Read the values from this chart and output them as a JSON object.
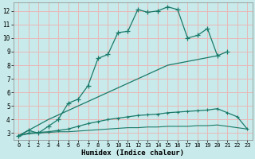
{
  "xlabel": "Humidex (Indice chaleur)",
  "bg_color": "#c8eaea",
  "grid_color": "#e8b8b8",
  "line_color": "#1a7a6a",
  "xlim": [
    -0.5,
    23.5
  ],
  "ylim": [
    2.5,
    12.6
  ],
  "xticks": [
    0,
    1,
    2,
    3,
    4,
    5,
    6,
    7,
    8,
    9,
    10,
    11,
    12,
    13,
    14,
    15,
    16,
    17,
    18,
    19,
    20,
    21,
    22,
    23
  ],
  "yticks": [
    3,
    4,
    5,
    6,
    7,
    8,
    9,
    10,
    11,
    12
  ],
  "line1_x": [
    0,
    1,
    2,
    3,
    4,
    5,
    6,
    7,
    8,
    9,
    10,
    11,
    12,
    13,
    14,
    15,
    16,
    17,
    18,
    19,
    20,
    21
  ],
  "line1_y": [
    2.8,
    3.2,
    3.0,
    3.5,
    4.0,
    5.2,
    5.5,
    6.5,
    8.5,
    8.8,
    10.4,
    10.5,
    12.1,
    11.9,
    12.0,
    12.3,
    12.1,
    10.0,
    10.2,
    10.7,
    8.7,
    9.0
  ],
  "line2_x": [
    0,
    3,
    15,
    20
  ],
  "line2_y": [
    2.8,
    4.0,
    8.0,
    8.7
  ],
  "line3_x": [
    0,
    1,
    2,
    3,
    4,
    5,
    6,
    7,
    8,
    9,
    10,
    11,
    12,
    13,
    14,
    15,
    16,
    17,
    18,
    19,
    20,
    21,
    22,
    23
  ],
  "line3_y": [
    2.8,
    3.0,
    3.05,
    3.1,
    3.2,
    3.3,
    3.5,
    3.7,
    3.85,
    4.0,
    4.1,
    4.2,
    4.3,
    4.35,
    4.4,
    4.5,
    4.55,
    4.6,
    4.65,
    4.7,
    4.8,
    4.5,
    4.2,
    3.3
  ],
  "line4_x": [
    0,
    1,
    2,
    3,
    4,
    5,
    6,
    7,
    8,
    9,
    10,
    11,
    12,
    13,
    14,
    15,
    16,
    17,
    18,
    19,
    20,
    21,
    22,
    23
  ],
  "line4_y": [
    2.8,
    2.95,
    3.0,
    3.05,
    3.1,
    3.1,
    3.15,
    3.2,
    3.25,
    3.3,
    3.35,
    3.4,
    3.4,
    3.45,
    3.45,
    3.5,
    3.5,
    3.5,
    3.55,
    3.55,
    3.6,
    3.5,
    3.4,
    3.3
  ]
}
